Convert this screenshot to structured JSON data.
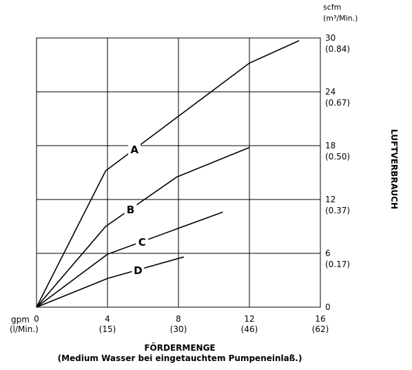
{
  "chart_data": {
    "type": "line",
    "xlabel": "FÖRDERMENGE",
    "xlabel_sub": "(Medium Wasser bei eingetauchtem Pumpeneinlaß.)",
    "ylabel": "LUFTVERBRAUCH",
    "x_unit_primary": "gpm",
    "x_unit_secondary": "(l/Min.)",
    "y_unit_primary": "scfm",
    "y_unit_secondary": "(m³/Min.)",
    "xlim": [
      0,
      16
    ],
    "ylim": [
      0,
      30
    ],
    "grid": true,
    "x_ticks": [
      {
        "value": 0,
        "primary": "0",
        "secondary": ""
      },
      {
        "value": 4,
        "primary": "4",
        "secondary": "(15)"
      },
      {
        "value": 8,
        "primary": "8",
        "secondary": "(30)"
      },
      {
        "value": 12,
        "primary": "12",
        "secondary": "(46)"
      },
      {
        "value": 16,
        "primary": "16",
        "secondary": "(62)"
      }
    ],
    "y_ticks": [
      {
        "value": 0,
        "primary": "0",
        "secondary": ""
      },
      {
        "value": 6,
        "primary": "6",
        "secondary": "(0.17)"
      },
      {
        "value": 12,
        "primary": "12",
        "secondary": "(0.37)"
      },
      {
        "value": 18,
        "primary": "18",
        "secondary": "(0.50)"
      },
      {
        "value": 24,
        "primary": "24",
        "secondary": "(0.67)"
      },
      {
        "value": 30,
        "primary": "30",
        "secondary": "(0.84)"
      }
    ],
    "series": [
      {
        "name": "A",
        "x": [
          0,
          3.9,
          12,
          14.8
        ],
        "y": [
          0,
          15.2,
          27.2,
          29.7
        ]
      },
      {
        "name": "B",
        "x": [
          0,
          3.9,
          7.9,
          12
        ],
        "y": [
          0,
          9.0,
          14.5,
          17.8
        ]
      },
      {
        "name": "C",
        "x": [
          0,
          4.0,
          10.5
        ],
        "y": [
          0,
          5.9,
          10.6
        ]
      },
      {
        "name": "D",
        "x": [
          0,
          4.0,
          8.3
        ],
        "y": [
          0,
          3.2,
          5.6
        ]
      }
    ]
  }
}
